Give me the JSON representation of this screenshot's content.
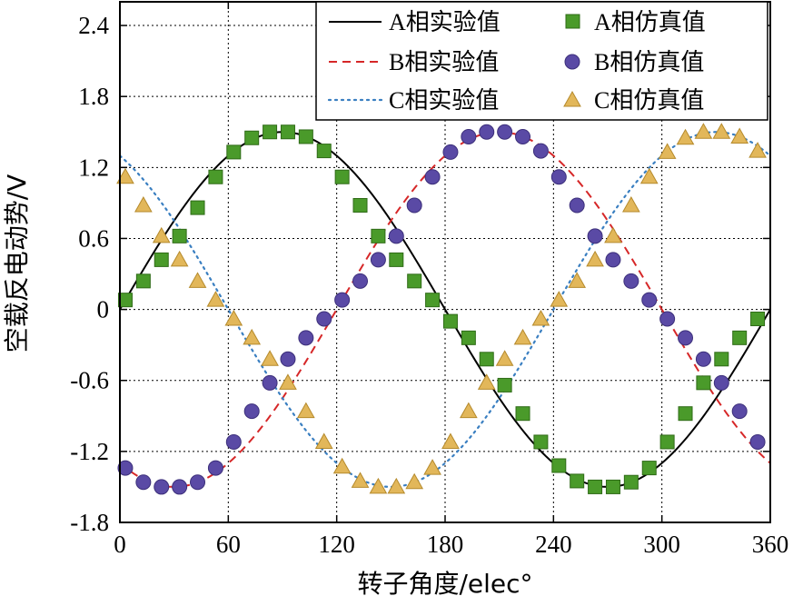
{
  "chart_data": {
    "type": "line",
    "title": "",
    "xlabel": "转子角度/elec°",
    "ylabel": "空载反电动势/V",
    "xlim": [
      0,
      360
    ],
    "ylim": [
      -1.8,
      2.6
    ],
    "xticks": [
      0,
      60,
      120,
      180,
      240,
      300,
      360
    ],
    "xtick_labels": [
      "0",
      "60",
      "120",
      "180",
      "240",
      "300",
      "360"
    ],
    "yticks": [
      -1.8,
      -1.2,
      -0.6,
      0,
      0.6,
      1.2,
      1.8,
      2.4
    ],
    "ytick_labels": [
      "-1.8",
      "-1.2",
      "-0.6",
      "0",
      "0.6",
      "1.2",
      "1.8",
      "2.4"
    ],
    "grid": true,
    "legend_position": "top-right",
    "amplitude": 1.5,
    "curve_step_deg": 2,
    "series": [
      {
        "name": "A相实验值",
        "kind": "line",
        "style": "solid",
        "color": "#000000",
        "phase_deg": 0,
        "legend_label": "A相实验值"
      },
      {
        "name": "B相实验值",
        "kind": "line",
        "style": "dashed",
        "color": "#d62728",
        "phase_deg": -120,
        "legend_label": "B相实验值"
      },
      {
        "name": "C相实验值",
        "kind": "line",
        "style": "dotted",
        "color": "#3a7fc1",
        "phase_deg": 120,
        "legend_label": "C相实验值"
      },
      {
        "name": "A相仿真值",
        "kind": "scatter",
        "marker": "square",
        "color": "#4a9a2a",
        "edge": "#2f6b17",
        "legend_label": "A相仿真值",
        "x": [
          3,
          13,
          23,
          33,
          43,
          53,
          63,
          73,
          83,
          93,
          103,
          113,
          123,
          133,
          143,
          153,
          163,
          173,
          183,
          193,
          203,
          213,
          223,
          233,
          243,
          253,
          263,
          273,
          283,
          293,
          303,
          313,
          323,
          333,
          343,
          353
        ],
        "y": [
          0.08,
          0.24,
          0.42,
          0.62,
          0.86,
          1.12,
          1.33,
          1.45,
          1.5,
          1.5,
          1.46,
          1.34,
          1.12,
          0.88,
          0.62,
          0.42,
          0.24,
          0.08,
          -0.1,
          -0.24,
          -0.42,
          -0.64,
          -0.88,
          -1.12,
          -1.32,
          -1.45,
          -1.5,
          -1.5,
          -1.46,
          -1.34,
          -1.12,
          -0.88,
          -0.62,
          -0.42,
          -0.24,
          -0.08
        ]
      },
      {
        "name": "B相仿真值",
        "kind": "scatter",
        "marker": "circle",
        "color": "#5a4aa5",
        "edge": "#3c2f7a",
        "legend_label": "B相仿真值",
        "x": [
          3,
          13,
          23,
          33,
          43,
          53,
          63,
          73,
          83,
          93,
          103,
          113,
          123,
          133,
          143,
          153,
          163,
          173,
          183,
          193,
          203,
          213,
          223,
          233,
          243,
          253,
          263,
          273,
          283,
          293,
          303,
          313,
          323,
          333,
          343,
          353
        ],
        "y": [
          -1.34,
          -1.46,
          -1.5,
          -1.5,
          -1.46,
          -1.34,
          -1.12,
          -0.86,
          -0.62,
          -0.42,
          -0.24,
          -0.08,
          0.08,
          0.24,
          0.42,
          0.62,
          0.88,
          1.12,
          1.33,
          1.46,
          1.5,
          1.5,
          1.46,
          1.34,
          1.12,
          0.88,
          0.62,
          0.42,
          0.24,
          0.08,
          -0.08,
          -0.24,
          -0.42,
          -0.62,
          -0.86,
          -1.12
        ]
      },
      {
        "name": "C相仿真值",
        "kind": "scatter",
        "marker": "triangle",
        "color": "#e2b75a",
        "edge": "#b58a2c",
        "legend_label": "C相仿真值",
        "x": [
          3,
          13,
          23,
          33,
          43,
          53,
          63,
          73,
          83,
          93,
          103,
          113,
          123,
          133,
          143,
          153,
          163,
          173,
          183,
          193,
          203,
          213,
          223,
          233,
          243,
          253,
          263,
          273,
          283,
          293,
          303,
          313,
          323,
          333,
          343,
          353
        ],
        "y": [
          1.12,
          0.88,
          0.62,
          0.42,
          0.24,
          0.08,
          -0.08,
          -0.24,
          -0.42,
          -0.62,
          -0.86,
          -1.12,
          -1.33,
          -1.45,
          -1.5,
          -1.5,
          -1.46,
          -1.34,
          -1.12,
          -0.86,
          -0.62,
          -0.42,
          -0.24,
          -0.08,
          0.08,
          0.24,
          0.42,
          0.62,
          0.88,
          1.12,
          1.33,
          1.45,
          1.5,
          1.5,
          1.46,
          1.34
        ]
      }
    ]
  }
}
